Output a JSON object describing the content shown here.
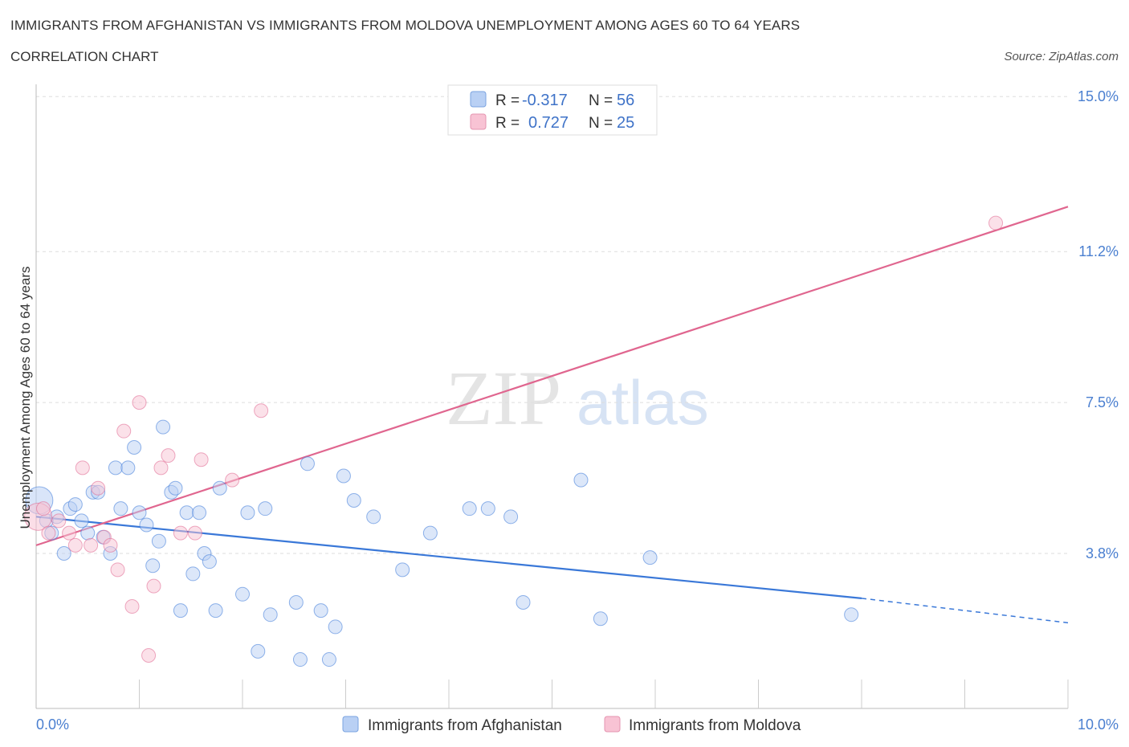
{
  "title": "IMMIGRANTS FROM AFGHANISTAN VS IMMIGRANTS FROM MOLDOVA UNEMPLOYMENT AMONG AGES 60 TO 64 YEARS",
  "subtitle": "CORRELATION CHART",
  "source": "Source: ZipAtlas.com",
  "watermark": {
    "zip": "ZIP",
    "atlas": "atlas"
  },
  "colors": {
    "afghanistan": "#3a78d8",
    "afghanistan_fill": "#b9d0f4",
    "moldova": "#e0668f",
    "moldova_fill": "#f8c3d4"
  },
  "legend": {
    "r_label": "R =",
    "n_label": "N =",
    "afghanistan": {
      "r": "-0.317",
      "n": "56"
    },
    "moldova": {
      "r": "0.727",
      "n": "25"
    }
  },
  "chart_data": {
    "type": "scatter",
    "title": "IMMIGRANTS FROM AFGHANISTAN VS IMMIGRANTS FROM MOLDOVA UNEMPLOYMENT AMONG AGES 60 TO 64 YEARS",
    "xlabel": "",
    "ylabel": "Unemployment Among Ages 60 to 64 years",
    "xlim": [
      0,
      10
    ],
    "ylim": [
      0,
      15.3
    ],
    "x_ticks": [
      "0.0%",
      "10.0%"
    ],
    "y_ticks": [
      {
        "value": 3.8,
        "label": "3.8%"
      },
      {
        "value": 7.5,
        "label": "7.5%"
      },
      {
        "value": 11.2,
        "label": "11.2%"
      },
      {
        "value": 15.0,
        "label": "15.0%"
      }
    ],
    "series": [
      {
        "name": "Immigrants from Afghanistan",
        "trend": {
          "x0": 0,
          "y0": 4.7,
          "x1": 8,
          "y1": 2.7,
          "dash_to_x": 10,
          "dash_to_y": 2.1
        },
        "points": [
          {
            "x": 0.03,
            "y": 5.1,
            "big": true
          },
          {
            "x": 0.1,
            "y": 4.6
          },
          {
            "x": 0.15,
            "y": 4.3
          },
          {
            "x": 0.2,
            "y": 4.7
          },
          {
            "x": 0.27,
            "y": 3.8
          },
          {
            "x": 0.33,
            "y": 4.9
          },
          {
            "x": 0.38,
            "y": 5.0
          },
          {
            "x": 0.44,
            "y": 4.6
          },
          {
            "x": 0.5,
            "y": 4.3
          },
          {
            "x": 0.55,
            "y": 5.3
          },
          {
            "x": 0.6,
            "y": 5.3
          },
          {
            "x": 0.65,
            "y": 4.2
          },
          {
            "x": 0.72,
            "y": 3.8
          },
          {
            "x": 0.77,
            "y": 5.9
          },
          {
            "x": 0.82,
            "y": 4.9
          },
          {
            "x": 0.89,
            "y": 5.9
          },
          {
            "x": 0.95,
            "y": 6.4
          },
          {
            "x": 1.0,
            "y": 4.8
          },
          {
            "x": 1.07,
            "y": 4.5
          },
          {
            "x": 1.13,
            "y": 3.5
          },
          {
            "x": 1.19,
            "y": 4.1
          },
          {
            "x": 1.23,
            "y": 6.9
          },
          {
            "x": 1.31,
            "y": 5.3
          },
          {
            "x": 1.35,
            "y": 5.4
          },
          {
            "x": 1.4,
            "y": 2.4
          },
          {
            "x": 1.46,
            "y": 4.8
          },
          {
            "x": 1.52,
            "y": 3.3
          },
          {
            "x": 1.58,
            "y": 4.8
          },
          {
            "x": 1.63,
            "y": 3.8
          },
          {
            "x": 1.68,
            "y": 3.6
          },
          {
            "x": 1.74,
            "y": 2.4
          },
          {
            "x": 1.78,
            "y": 5.4
          },
          {
            "x": 2.0,
            "y": 2.8
          },
          {
            "x": 2.05,
            "y": 4.8
          },
          {
            "x": 2.15,
            "y": 1.4
          },
          {
            "x": 2.22,
            "y": 4.9
          },
          {
            "x": 2.27,
            "y": 2.3
          },
          {
            "x": 2.52,
            "y": 2.6
          },
          {
            "x": 2.56,
            "y": 1.2
          },
          {
            "x": 2.63,
            "y": 6.0
          },
          {
            "x": 2.76,
            "y": 2.4
          },
          {
            "x": 2.84,
            "y": 1.2
          },
          {
            "x": 2.9,
            "y": 2.0
          },
          {
            "x": 2.98,
            "y": 5.7
          },
          {
            "x": 3.08,
            "y": 5.1
          },
          {
            "x": 3.27,
            "y": 4.7
          },
          {
            "x": 3.55,
            "y": 3.4
          },
          {
            "x": 3.82,
            "y": 4.3
          },
          {
            "x": 4.2,
            "y": 4.9
          },
          {
            "x": 4.38,
            "y": 4.9
          },
          {
            "x": 4.6,
            "y": 4.7
          },
          {
            "x": 4.72,
            "y": 2.6
          },
          {
            "x": 5.28,
            "y": 5.6
          },
          {
            "x": 5.47,
            "y": 2.2
          },
          {
            "x": 5.95,
            "y": 3.7
          },
          {
            "x": 7.9,
            "y": 2.3
          }
        ]
      },
      {
        "name": "Immigrants from Moldova",
        "trend": {
          "x0": 0,
          "y0": 4.0,
          "x1": 10,
          "y1": 12.3
        },
        "points": [
          {
            "x": 0.02,
            "y": 4.7,
            "big": true
          },
          {
            "x": 0.12,
            "y": 4.3
          },
          {
            "x": 0.22,
            "y": 4.6
          },
          {
            "x": 0.32,
            "y": 4.3
          },
          {
            "x": 0.38,
            "y": 4.0
          },
          {
            "x": 0.45,
            "y": 5.9
          },
          {
            "x": 0.53,
            "y": 4.0
          },
          {
            "x": 0.6,
            "y": 5.4
          },
          {
            "x": 0.66,
            "y": 4.2
          },
          {
            "x": 0.72,
            "y": 4.0
          },
          {
            "x": 0.79,
            "y": 3.4
          },
          {
            "x": 0.85,
            "y": 6.8
          },
          {
            "x": 0.93,
            "y": 2.5
          },
          {
            "x": 1.0,
            "y": 7.5
          },
          {
            "x": 1.09,
            "y": 1.3
          },
          {
            "x": 1.14,
            "y": 3.0
          },
          {
            "x": 1.21,
            "y": 5.9
          },
          {
            "x": 1.28,
            "y": 6.2
          },
          {
            "x": 1.4,
            "y": 4.3
          },
          {
            "x": 1.54,
            "y": 4.3
          },
          {
            "x": 1.6,
            "y": 6.1
          },
          {
            "x": 1.9,
            "y": 5.6
          },
          {
            "x": 2.18,
            "y": 7.3
          },
          {
            "x": 9.3,
            "y": 11.9
          },
          {
            "x": 0.07,
            "y": 4.9
          }
        ]
      }
    ]
  },
  "bottom_legend": {
    "afghanistan": "Immigrants from Afghanistan",
    "moldova": "Immigrants from Moldova"
  }
}
